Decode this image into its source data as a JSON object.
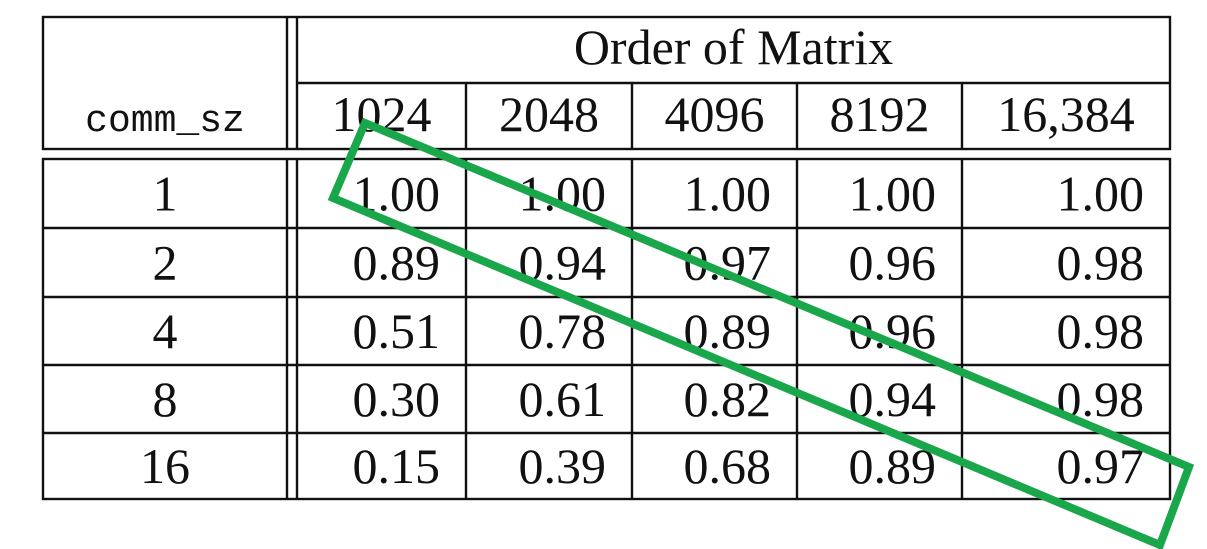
{
  "chart_data": {
    "type": "table",
    "row_header_label": "comm_sz",
    "column_group_label": "Order of Matrix",
    "columns": [
      "1024",
      "2048",
      "4096",
      "8192",
      "16,384"
    ],
    "rows": [
      {
        "label": "1",
        "values": [
          "1.00",
          "1.00",
          "1.00",
          "1.00",
          "1.00"
        ]
      },
      {
        "label": "2",
        "values": [
          "0.89",
          "0.94",
          "0.97",
          "0.96",
          "0.98"
        ]
      },
      {
        "label": "4",
        "values": [
          "0.51",
          "0.78",
          "0.89",
          "0.96",
          "0.98"
        ]
      },
      {
        "label": "8",
        "values": [
          "0.30",
          "0.61",
          "0.82",
          "0.94",
          "0.98"
        ]
      },
      {
        "label": "16",
        "values": [
          "0.15",
          "0.39",
          "0.68",
          "0.89",
          "0.97"
        ]
      }
    ],
    "annotation": {
      "shape": "rectangle",
      "color": "#1aa64a",
      "meaning": "diagonal highlight"
    }
  }
}
